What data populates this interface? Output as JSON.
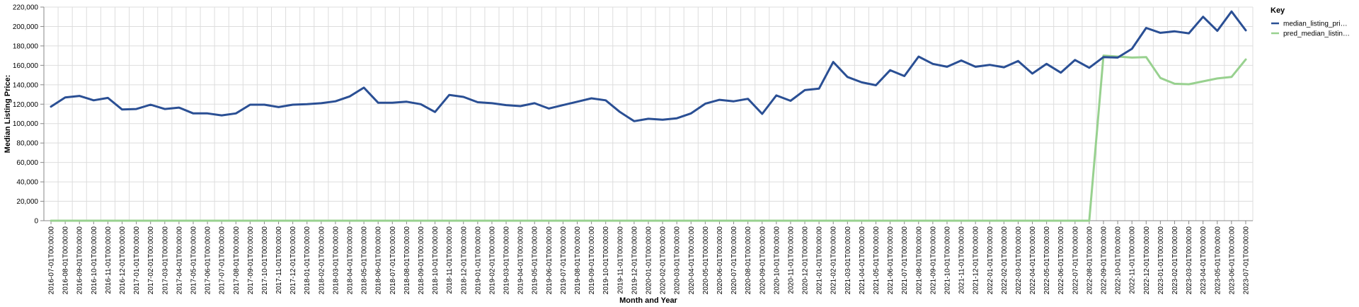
{
  "chart_data": {
    "type": "line",
    "title": "",
    "xlabel": "Month and Year",
    "ylabel": "Median Listing Price:",
    "ylim": [
      0,
      220000
    ],
    "y_ticks": [
      "0",
      "20,000",
      "40,000",
      "60,000",
      "80,000",
      "100,000",
      "120,000",
      "140,000",
      "160,000",
      "180,000",
      "200,000",
      "220,000"
    ],
    "grid": true,
    "legend": {
      "title": "Key",
      "placement": "top-right"
    },
    "x": [
      "2016-07-01T00:00:00",
      "2016-08-01T00:00:00",
      "2016-09-01T00:00:00",
      "2016-10-01T00:00:00",
      "2016-11-01T00:00:00",
      "2016-12-01T00:00:00",
      "2017-01-01T00:00:00",
      "2017-02-01T00:00:00",
      "2017-03-01T00:00:00",
      "2017-04-01T00:00:00",
      "2017-05-01T00:00:00",
      "2017-06-01T00:00:00",
      "2017-07-01T00:00:00",
      "2017-08-01T00:00:00",
      "2017-09-01T00:00:00",
      "2017-10-01T00:00:00",
      "2017-11-01T00:00:00",
      "2017-12-01T00:00:00",
      "2018-01-01T00:00:00",
      "2018-02-01T00:00:00",
      "2018-03-01T00:00:00",
      "2018-04-01T00:00:00",
      "2018-05-01T00:00:00",
      "2018-06-01T00:00:00",
      "2018-07-01T00:00:00",
      "2018-08-01T00:00:00",
      "2018-09-01T00:00:00",
      "2018-10-01T00:00:00",
      "2018-11-01T00:00:00",
      "2018-12-01T00:00:00",
      "2019-01-01T00:00:00",
      "2019-02-01T00:00:00",
      "2019-03-01T00:00:00",
      "2019-04-01T00:00:00",
      "2019-05-01T00:00:00",
      "2019-06-01T00:00:00",
      "2019-07-01T00:00:00",
      "2019-08-01T00:00:00",
      "2019-09-01T00:00:00",
      "2019-10-01T00:00:00",
      "2019-11-01T00:00:00",
      "2019-12-01T00:00:00",
      "2020-01-01T00:00:00",
      "2020-02-01T00:00:00",
      "2020-03-01T00:00:00",
      "2020-04-01T00:00:00",
      "2020-05-01T00:00:00",
      "2020-06-01T00:00:00",
      "2020-07-01T00:00:00",
      "2020-08-01T00:00:00",
      "2020-09-01T00:00:00",
      "2020-10-01T00:00:00",
      "2020-11-01T00:00:00",
      "2020-12-01T00:00:00",
      "2021-01-01T00:00:00",
      "2021-02-01T00:00:00",
      "2021-03-01T00:00:00",
      "2021-04-01T00:00:00",
      "2021-05-01T00:00:00",
      "2021-06-01T00:00:00",
      "2021-07-01T00:00:00",
      "2021-08-01T00:00:00",
      "2021-09-01T00:00:00",
      "2021-10-01T00:00:00",
      "2021-11-01T00:00:00",
      "2021-12-01T00:00:00",
      "2022-01-01T00:00:00",
      "2022-02-01T00:00:00",
      "2022-03-01T00:00:00",
      "2022-04-01T00:00:00",
      "2022-05-01T00:00:00",
      "2022-06-01T00:00:00",
      "2022-07-01T00:00:00",
      "2022-08-01T00:00:00",
      "2022-09-01T00:00:00",
      "2022-10-01T00:00:00",
      "2022-11-01T00:00:00",
      "2022-12-01T00:00:00",
      "2023-01-01T00:00:00",
      "2023-02-01T00:00:00",
      "2023-03-01T00:00:00",
      "2023-04-01T00:00:00",
      "2023-05-01T00:00:00",
      "2023-06-01T00:00:00",
      "2023-07-01T00:00:00"
    ],
    "series": [
      {
        "name": "median_listing_pri…",
        "color": "#2a4f94",
        "values": [
          117500,
          127000,
          128500,
          124000,
          126500,
          114500,
          115000,
          119500,
          115000,
          116500,
          110500,
          110500,
          108500,
          110500,
          119500,
          119500,
          117000,
          119500,
          120000,
          121000,
          123000,
          128000,
          137000,
          121500,
          121500,
          122500,
          120000,
          112000,
          129500,
          127500,
          122000,
          121000,
          119000,
          118000,
          121000,
          115500,
          119000,
          122500,
          126000,
          124000,
          112000,
          102500,
          105000,
          104000,
          105500,
          110500,
          120500,
          124500,
          123000,
          125500,
          110000,
          129000,
          123500,
          134500,
          136000,
          163500,
          148000,
          142500,
          139500,
          155000,
          149000,
          169000,
          161500,
          158500,
          165000,
          158500,
          160500,
          158000,
          164500,
          151500,
          161500,
          152500,
          165500,
          157500,
          168500,
          168000,
          177000,
          198500,
          193500,
          195000,
          193000,
          210000,
          195500,
          215500,
          196000
        ]
      },
      {
        "name": "pred_median_listin…",
        "color": "#98d18f",
        "values": [
          0,
          0,
          0,
          0,
          0,
          0,
          0,
          0,
          0,
          0,
          0,
          0,
          0,
          0,
          0,
          0,
          0,
          0,
          0,
          0,
          0,
          0,
          0,
          0,
          0,
          0,
          0,
          0,
          0,
          0,
          0,
          0,
          0,
          0,
          0,
          0,
          0,
          0,
          0,
          0,
          0,
          0,
          0,
          0,
          0,
          0,
          0,
          0,
          0,
          0,
          0,
          0,
          0,
          0,
          0,
          0,
          0,
          0,
          0,
          0,
          0,
          0,
          0,
          0,
          0,
          0,
          0,
          0,
          0,
          0,
          0,
          0,
          0,
          0,
          170000,
          169000,
          168000,
          168500,
          147000,
          141000,
          140500,
          143500,
          146500,
          148000,
          166000
        ]
      }
    ]
  }
}
